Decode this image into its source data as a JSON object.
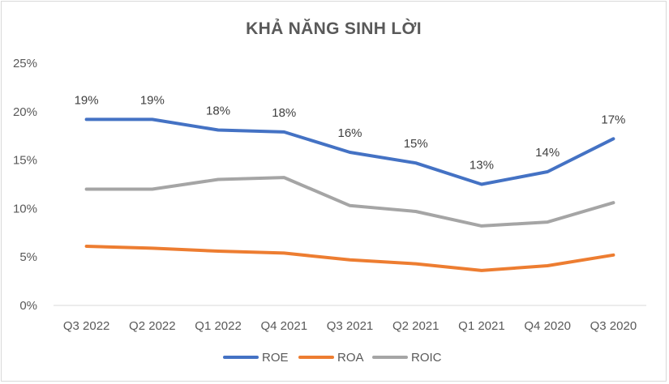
{
  "chart_data": {
    "type": "line",
    "title": "KHẢ NĂNG SINH LỜI",
    "categories": [
      "Q3 2022",
      "Q2 2022",
      "Q1 2022",
      "Q4 2021",
      "Q3 2021",
      "Q2 2021",
      "Q1 2021",
      "Q4 2020",
      "Q3 2020"
    ],
    "series": [
      {
        "name": "ROE",
        "color": "#4472c4",
        "values": [
          19.2,
          19.2,
          18.1,
          17.9,
          15.8,
          14.7,
          12.5,
          13.8,
          17.2
        ],
        "data_labels": [
          "19%",
          "19%",
          "18%",
          "18%",
          "16%",
          "15%",
          "13%",
          "14%",
          "17%"
        ]
      },
      {
        "name": "ROA",
        "color": "#ed7d31",
        "values": [
          6.1,
          5.9,
          5.6,
          5.4,
          4.7,
          4.3,
          3.6,
          4.1,
          5.2
        ]
      },
      {
        "name": "ROIC",
        "color": "#a5a5a5",
        "values": [
          12.0,
          12.0,
          13.0,
          13.2,
          10.3,
          9.7,
          8.2,
          8.6,
          10.6
        ]
      }
    ],
    "y_ticks": [
      "0%",
      "5%",
      "10%",
      "15%",
      "20%",
      "25%"
    ],
    "ylim": [
      0,
      25
    ],
    "grid": false,
    "legend_position": "bottom"
  }
}
